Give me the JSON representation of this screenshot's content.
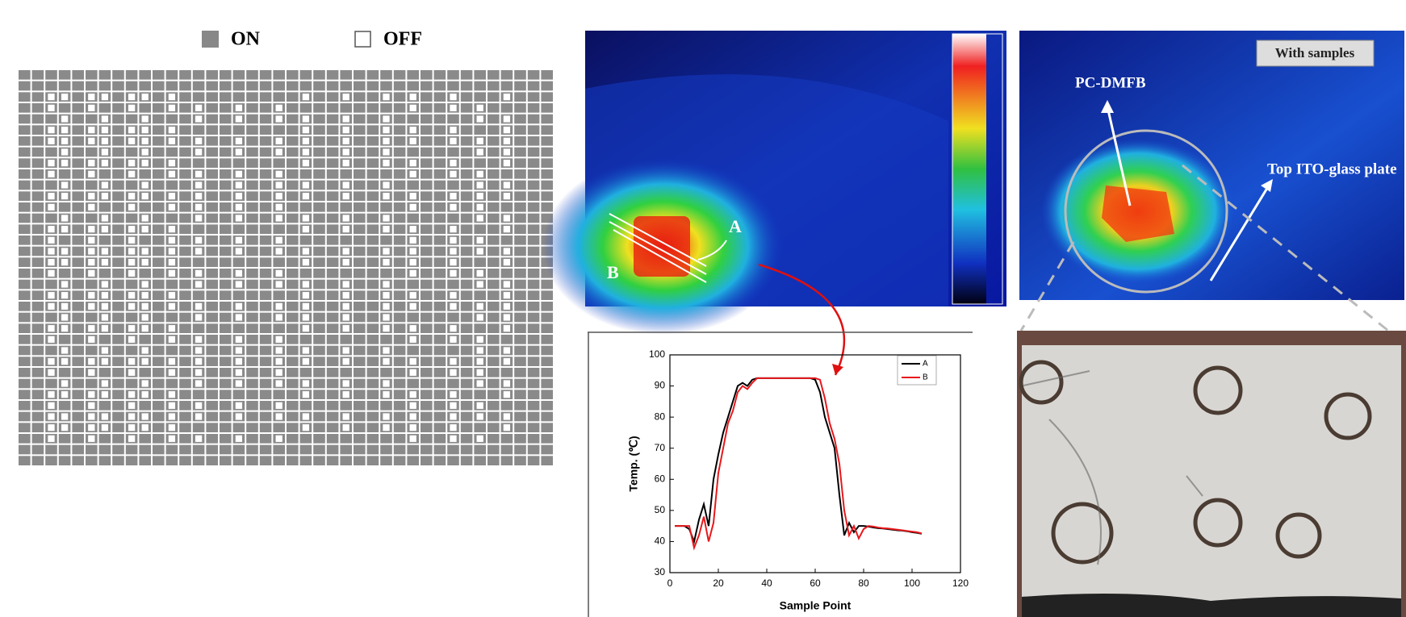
{
  "grid_legend": {
    "on": "ON",
    "off": "OFF"
  },
  "thermal_image": {
    "label_a": "A",
    "label_b": "B"
  },
  "sample_image": {
    "badge": "With samples",
    "label_1": "PC-DMFB",
    "label_2": "Top ITO-glass plate"
  },
  "chart_data": {
    "type": "line",
    "xlabel": "Sample Point",
    "ylabel": "Temp. (℃)",
    "x": [
      2,
      4,
      6,
      8,
      10,
      12,
      14,
      16,
      18,
      20,
      22,
      24,
      26,
      28,
      30,
      32,
      34,
      36,
      38,
      40,
      42,
      44,
      46,
      48,
      50,
      52,
      54,
      56,
      58,
      60,
      62,
      64,
      66,
      68,
      70,
      72,
      74,
      76,
      78,
      80,
      82,
      84,
      86,
      88,
      90,
      92,
      94,
      96,
      98,
      100,
      102,
      104
    ],
    "series": [
      {
        "name": "A",
        "color": "#000000",
        "values": [
          45,
          45,
          45,
          44,
          40,
          47,
          52,
          45,
          60,
          68,
          75,
          80,
          85,
          90,
          91,
          90,
          92,
          92.5,
          92.5,
          92.5,
          92.5,
          92.5,
          92.5,
          92.5,
          92.5,
          92.5,
          92.5,
          92.5,
          92.5,
          92,
          88,
          80,
          75,
          70,
          55,
          42,
          46,
          43,
          45,
          45,
          44.8,
          44.5,
          44.3,
          44.2,
          44,
          43.8,
          43.6,
          43.5,
          43.3,
          43,
          42.8,
          42.5
        ]
      },
      {
        "name": "B",
        "color": "#e8181c",
        "values": [
          45,
          45,
          45,
          45,
          38,
          42,
          48,
          40,
          46,
          62,
          70,
          78,
          82,
          88,
          90,
          89,
          91,
          92.5,
          92.5,
          92.5,
          92.5,
          92.5,
          92.5,
          92.5,
          92.5,
          92.5,
          92.5,
          92.5,
          92.5,
          92.5,
          92,
          86,
          78,
          73,
          65,
          50,
          42,
          45,
          41,
          44,
          45,
          44.8,
          44.5,
          44.3,
          44.2,
          44,
          43.8,
          43.6,
          43.4,
          43.2,
          43,
          42.6
        ]
      }
    ],
    "xlim": [
      0,
      120
    ],
    "xticks": [
      0,
      20,
      40,
      60,
      80,
      100,
      120
    ],
    "ylim": [
      30,
      100
    ],
    "yticks": [
      30,
      40,
      50,
      60,
      70,
      80,
      90,
      100
    ]
  }
}
